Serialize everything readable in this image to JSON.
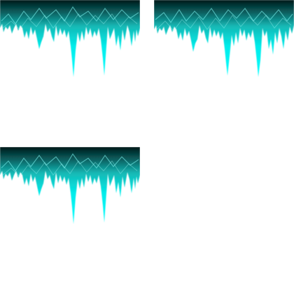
{
  "tiles": [
    {
      "name": "icicle-tile-1"
    },
    {
      "name": "icicle-tile-2"
    },
    {
      "name": "icicle-tile-3"
    }
  ],
  "colors": {
    "background": "#ffffff",
    "icicle_base": "#00e8e0",
    "icicle_tip": "#00ffff",
    "icicle_top": "#003b3b",
    "icicle_mid": "#0a8c8a",
    "highlight": "#5ff5ef"
  }
}
